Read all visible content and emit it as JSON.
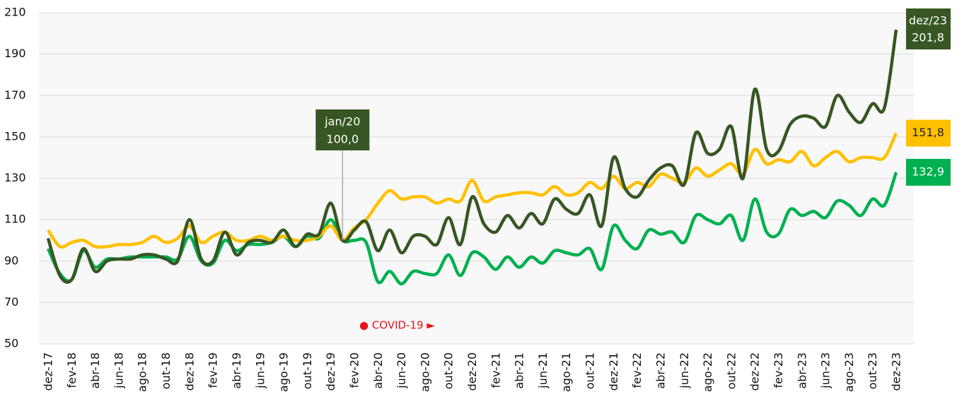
{
  "chart_data": {
    "type": "line",
    "categories": [
      "dez-17",
      null,
      "fev-18",
      null,
      "abr-18",
      null,
      "jun-18",
      null,
      "ago-18",
      null,
      "out-18",
      null,
      "dez-18",
      null,
      "fev-19",
      null,
      "abr-19",
      null,
      "jun-19",
      null,
      "ago-19",
      null,
      "out-19",
      null,
      "dez-19",
      null,
      "fev-20",
      null,
      "abr-20",
      null,
      "jun-20",
      null,
      "ago-20",
      null,
      "out-20",
      null,
      "dez-20",
      null,
      "fev-21",
      null,
      "abr-21",
      null,
      "jun-21",
      null,
      "ago-21",
      null,
      "out-21",
      null,
      "dez-21",
      null,
      "fev-22",
      null,
      "abr-22",
      null,
      "jun-22",
      null,
      "ago-22",
      null,
      "out-22",
      null,
      "dez-22",
      null,
      "fev-23",
      null,
      "abr-23",
      null,
      "jun-23",
      null,
      "ago-23",
      null,
      "out-23",
      null,
      "dez-23"
    ],
    "series": [
      {
        "color": "#375623",
        "values": [
          101,
          83,
          81,
          96,
          85,
          90,
          91,
          91,
          93,
          93,
          91,
          90,
          110,
          91,
          90,
          104,
          93,
          99,
          100,
          99,
          105,
          97,
          103,
          103,
          118,
          100,
          105,
          109,
          95,
          105,
          94,
          102,
          102,
          98,
          111,
          98,
          121,
          108,
          104,
          112,
          106,
          113,
          108,
          120,
          115,
          113,
          122,
          107,
          140,
          125,
          121,
          129,
          135,
          136,
          127,
          152,
          142,
          144,
          155,
          130,
          173,
          144,
          143,
          156,
          160,
          159,
          155,
          170,
          162,
          157,
          166,
          164,
          201.8
        ],
        "value_labels": [
          null,
          null,
          null,
          null,
          null,
          null,
          null,
          null,
          null,
          null,
          null,
          null,
          null,
          null,
          null,
          null,
          null,
          null,
          null,
          null,
          null,
          null,
          null,
          null,
          null,
          "100,0",
          null,
          null,
          null,
          null,
          null,
          null,
          null,
          null,
          null,
          null,
          null,
          null,
          null,
          null,
          null,
          null,
          null,
          null,
          null,
          null,
          null,
          null,
          null,
          null,
          null,
          null,
          null,
          null,
          null,
          null,
          null,
          null,
          null,
          null,
          null,
          null,
          null,
          null,
          null,
          null,
          null,
          null,
          null,
          null,
          null,
          null,
          "201,8"
        ]
      },
      {
        "color": "#ffc000",
        "values": [
          105,
          97,
          99,
          100,
          97,
          97,
          98,
          98,
          99,
          102,
          99,
          101,
          107,
          99,
          102,
          104,
          100,
          100,
          102,
          100,
          102,
          100,
          100,
          102,
          107,
          100,
          106,
          110,
          118,
          124,
          120,
          121,
          121,
          118,
          120,
          119,
          129,
          119,
          121,
          122,
          123,
          123,
          122,
          126,
          122,
          123,
          128,
          125,
          131,
          125,
          128,
          126,
          132,
          130,
          128,
          135,
          131,
          134,
          137,
          132,
          144,
          137,
          139,
          138,
          143,
          136,
          140,
          143,
          138,
          140,
          140,
          140,
          151.8
        ],
        "value_labels": [
          null,
          null,
          null,
          null,
          null,
          null,
          null,
          null,
          null,
          null,
          null,
          null,
          null,
          null,
          null,
          null,
          null,
          null,
          null,
          null,
          null,
          null,
          null,
          null,
          null,
          null,
          null,
          null,
          null,
          null,
          null,
          null,
          null,
          null,
          null,
          null,
          null,
          null,
          null,
          null,
          null,
          null,
          null,
          null,
          null,
          null,
          null,
          null,
          null,
          null,
          null,
          null,
          null,
          null,
          null,
          null,
          null,
          null,
          null,
          null,
          null,
          null,
          null,
          null,
          null,
          null,
          null,
          null,
          null,
          null,
          null,
          null,
          "151,8"
        ]
      },
      {
        "color": "#00b050",
        "values": [
          96,
          84,
          81,
          95,
          87,
          91,
          91,
          92,
          92,
          92,
          92,
          91,
          102,
          90,
          89,
          100,
          95,
          98,
          98,
          99,
          102,
          97,
          102,
          101,
          110,
          100,
          100,
          99,
          80,
          85,
          79,
          85,
          84,
          84,
          93,
          83,
          94,
          92,
          86,
          92,
          87,
          92,
          89,
          95,
          94,
          93,
          96,
          86,
          107,
          100,
          96,
          105,
          103,
          104,
          99,
          112,
          110,
          108,
          112,
          100,
          120,
          104,
          103,
          115,
          112,
          114,
          111,
          119,
          117,
          112,
          120,
          117,
          132.9
        ],
        "value_labels": [
          null,
          null,
          null,
          null,
          null,
          null,
          null,
          null,
          null,
          null,
          null,
          null,
          null,
          null,
          null,
          null,
          null,
          null,
          null,
          null,
          null,
          null,
          null,
          null,
          null,
          null,
          null,
          null,
          null,
          null,
          null,
          null,
          null,
          null,
          null,
          null,
          null,
          null,
          null,
          null,
          null,
          null,
          null,
          null,
          null,
          null,
          null,
          null,
          null,
          null,
          null,
          null,
          null,
          null,
          null,
          null,
          null,
          null,
          null,
          null,
          null,
          null,
          null,
          null,
          null,
          null,
          null,
          null,
          null,
          null,
          null,
          null,
          "132,9"
        ]
      }
    ],
    "annotations": [
      "jan/20",
      "dez/23",
      "● COVID-19 ►"
    ],
    "ylim": [
      50,
      210
    ],
    "yticks": [
      50,
      70,
      90,
      110,
      130,
      150,
      170,
      190,
      210
    ],
    "grid": true
  }
}
